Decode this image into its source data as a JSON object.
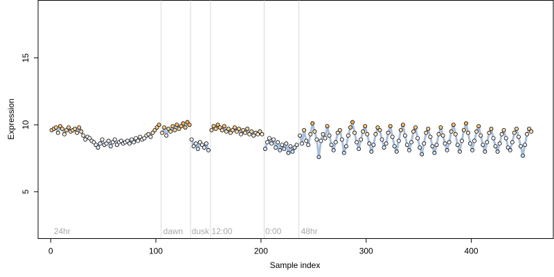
{
  "chart_data": {
    "type": "scatter",
    "title": "",
    "xlabel": "Sample index",
    "ylabel": "Expression",
    "xlim": [
      -12,
      478
    ],
    "ylim": [
      1.5,
      19.3
    ],
    "x_ticks": [
      0,
      100,
      200,
      300,
      400
    ],
    "y_ticks": [
      5,
      10,
      15
    ],
    "grid": false,
    "legend": "none",
    "colors": {
      "axis": "#000000",
      "separator": "#d9d9d9",
      "section_label": "#a8a8a8",
      "trend_line": "#a9bedb",
      "point_stroke": "#000000",
      "point_fill_low": "#c8dcf4",
      "point_fill_mid": "#ffffff",
      "point_fill_high": "#f5b04e"
    },
    "separators": [
      105,
      133,
      152,
      203,
      236
    ],
    "section_labels": [
      {
        "x": 3,
        "text": "24hr"
      },
      {
        "x": 107,
        "text": "dawn"
      },
      {
        "x": 134,
        "text": "dusk"
      },
      {
        "x": 153,
        "text": "12:00"
      },
      {
        "x": 204,
        "text": "0:00"
      },
      {
        "x": 238,
        "text": "48hr"
      }
    ],
    "segments": [
      {
        "name": "24hr",
        "points": [
          [
            1,
            9.6
          ],
          [
            3,
            9.7
          ],
          [
            5,
            9.8
          ],
          [
            7,
            9.4
          ],
          [
            9,
            9.9
          ],
          [
            11,
            9.7
          ],
          [
            13,
            9.3
          ],
          [
            15,
            9.6
          ],
          [
            17,
            9.8
          ],
          [
            19,
            9.5
          ],
          [
            21,
            9.6
          ],
          [
            23,
            9.7
          ],
          [
            25,
            9.4
          ],
          [
            27,
            9.8
          ],
          [
            29,
            9.5
          ],
          [
            31,
            9.2
          ],
          [
            33,
            8.9
          ],
          [
            35,
            9.1
          ],
          [
            37,
            9.0
          ],
          [
            39,
            8.8
          ],
          [
            41,
            8.7
          ],
          [
            43,
            8.5
          ],
          [
            45,
            8.3
          ],
          [
            47,
            8.6
          ],
          [
            49,
            8.9
          ],
          [
            51,
            8.5
          ],
          [
            53,
            8.6
          ],
          [
            55,
            8.8
          ],
          [
            57,
            8.4
          ],
          [
            59,
            8.7
          ],
          [
            61,
            8.9
          ],
          [
            63,
            8.5
          ],
          [
            65,
            8.7
          ],
          [
            67,
            8.8
          ],
          [
            69,
            8.6
          ],
          [
            71,
            8.7
          ],
          [
            73,
            8.8
          ],
          [
            75,
            8.6
          ],
          [
            77,
            8.9
          ],
          [
            79,
            8.7
          ],
          [
            81,
            9.0
          ],
          [
            83,
            8.8
          ],
          [
            85,
            9.1
          ],
          [
            87,
            8.9
          ],
          [
            89,
            9.0
          ],
          [
            91,
            9.2
          ],
          [
            93,
            9.3
          ],
          [
            95,
            9.1
          ],
          [
            97,
            9.4
          ],
          [
            99,
            9.6
          ],
          [
            101,
            9.8
          ],
          [
            103,
            10.0
          ]
        ]
      },
      {
        "name": "dawn",
        "points": [
          [
            106,
            9.4
          ],
          [
            108,
            9.8
          ],
          [
            110,
            9.2
          ],
          [
            112,
            9.7
          ],
          [
            114,
            9.5
          ],
          [
            116,
            9.9
          ],
          [
            118,
            9.6
          ],
          [
            120,
            10.0
          ],
          [
            122,
            9.7
          ],
          [
            124,
            9.9
          ],
          [
            126,
            10.1
          ],
          [
            128,
            9.8
          ],
          [
            130,
            10.2
          ],
          [
            132,
            10.0
          ]
        ]
      },
      {
        "name": "dusk",
        "points": [
          [
            134,
            8.9
          ],
          [
            136,
            8.4
          ],
          [
            138,
            8.6
          ],
          [
            140,
            8.2
          ],
          [
            142,
            8.7
          ],
          [
            144,
            8.5
          ],
          [
            146,
            8.3
          ],
          [
            148,
            8.6
          ],
          [
            150,
            8.1
          ]
        ]
      },
      {
        "name": "12:00",
        "points": [
          [
            153,
            9.6
          ],
          [
            155,
            9.9
          ],
          [
            157,
            9.7
          ],
          [
            159,
            10.0
          ],
          [
            161,
            9.8
          ],
          [
            163,
            9.6
          ],
          [
            165,
            9.9
          ],
          [
            167,
            9.5
          ],
          [
            169,
            9.7
          ],
          [
            171,
            9.4
          ],
          [
            173,
            9.6
          ],
          [
            175,
            9.8
          ],
          [
            177,
            9.5
          ],
          [
            179,
            9.7
          ],
          [
            181,
            9.3
          ],
          [
            183,
            9.6
          ],
          [
            185,
            9.4
          ],
          [
            187,
            9.7
          ],
          [
            189,
            9.3
          ],
          [
            191,
            9.5
          ],
          [
            193,
            9.2
          ],
          [
            195,
            9.4
          ],
          [
            197,
            9.3
          ],
          [
            199,
            9.5
          ],
          [
            201,
            9.3
          ]
        ]
      },
      {
        "name": "0:00",
        "points": [
          [
            204,
            8.2
          ],
          [
            206,
            8.7
          ],
          [
            208,
            9.0
          ],
          [
            210,
            8.6
          ],
          [
            212,
            8.9
          ],
          [
            214,
            8.3
          ],
          [
            216,
            8.7
          ],
          [
            218,
            8.1
          ],
          [
            220,
            8.5
          ],
          [
            222,
            8.2
          ],
          [
            224,
            8.6
          ],
          [
            226,
            7.9
          ],
          [
            228,
            8.4
          ],
          [
            230,
            8.0
          ],
          [
            232,
            8.3
          ],
          [
            234,
            8.5
          ]
        ]
      },
      {
        "name": "48hr",
        "points": [
          [
            237,
            9.2
          ],
          [
            239,
            8.6
          ],
          [
            241,
            9.6
          ],
          [
            243,
            8.8
          ],
          [
            245,
            8.5
          ],
          [
            247,
            9.3
          ],
          [
            249,
            10.1
          ],
          [
            251,
            9.5
          ],
          [
            253,
            8.9
          ],
          [
            255,
            7.6
          ],
          [
            257,
            8.8
          ],
          [
            259,
            9.3
          ],
          [
            261,
            9.0
          ],
          [
            263,
            9.9
          ],
          [
            265,
            9.2
          ],
          [
            267,
            8.5
          ],
          [
            269,
            8.1
          ],
          [
            271,
            8.7
          ],
          [
            273,
            9.4
          ],
          [
            275,
            9.6
          ],
          [
            277,
            8.9
          ],
          [
            279,
            7.9
          ],
          [
            281,
            8.4
          ],
          [
            283,
            9.2
          ],
          [
            285,
            9.8
          ],
          [
            287,
            10.2
          ],
          [
            289,
            9.4
          ],
          [
            291,
            8.7
          ],
          [
            293,
            8.2
          ],
          [
            295,
            8.9
          ],
          [
            297,
            9.5
          ],
          [
            299,
            9.9
          ],
          [
            301,
            9.3
          ],
          [
            303,
            8.6
          ],
          [
            305,
            8.0
          ],
          [
            307,
            8.5
          ],
          [
            309,
            9.3
          ],
          [
            311,
            9.8
          ],
          [
            313,
            9.6
          ],
          [
            315,
            8.9
          ],
          [
            317,
            8.3
          ],
          [
            319,
            8.6
          ],
          [
            321,
            9.4
          ],
          [
            323,
            9.9
          ],
          [
            325,
            9.1
          ],
          [
            327,
            8.4
          ],
          [
            329,
            8.0
          ],
          [
            331,
            8.8
          ],
          [
            333,
            9.6
          ],
          [
            335,
            10.0
          ],
          [
            337,
            9.2
          ],
          [
            339,
            8.5
          ],
          [
            341,
            8.1
          ],
          [
            343,
            8.7
          ],
          [
            345,
            9.5
          ],
          [
            347,
            9.8
          ],
          [
            349,
            9.0
          ],
          [
            351,
            8.3
          ],
          [
            353,
            7.8
          ],
          [
            355,
            8.6
          ],
          [
            357,
            9.4
          ],
          [
            359,
            9.7
          ],
          [
            361,
            9.1
          ],
          [
            363,
            8.4
          ],
          [
            365,
            7.9
          ],
          [
            367,
            8.5
          ],
          [
            369,
            9.3
          ],
          [
            371,
            9.8
          ],
          [
            373,
            9.2
          ],
          [
            375,
            8.6
          ],
          [
            377,
            8.1
          ],
          [
            379,
            8.7
          ],
          [
            381,
            9.5
          ],
          [
            383,
            10.0
          ],
          [
            385,
            9.3
          ],
          [
            387,
            8.5
          ],
          [
            389,
            8.0
          ],
          [
            391,
            8.8
          ],
          [
            393,
            9.6
          ],
          [
            395,
            10.1
          ],
          [
            397,
            9.4
          ],
          [
            399,
            8.6
          ],
          [
            401,
            8.1
          ],
          [
            403,
            8.8
          ],
          [
            405,
            9.5
          ],
          [
            407,
            9.9
          ],
          [
            409,
            9.2
          ],
          [
            411,
            8.5
          ],
          [
            413,
            8.0
          ],
          [
            415,
            8.7
          ],
          [
            417,
            9.4
          ],
          [
            419,
            9.7
          ],
          [
            421,
            9.0
          ],
          [
            423,
            8.4
          ],
          [
            425,
            8.0
          ],
          [
            427,
            8.6
          ],
          [
            429,
            9.3
          ],
          [
            431,
            9.6
          ],
          [
            433,
            9.0
          ],
          [
            435,
            8.3
          ],
          [
            437,
            8.1
          ],
          [
            439,
            8.7
          ],
          [
            441,
            9.4
          ],
          [
            443,
            9.7
          ],
          [
            445,
            9.1
          ],
          [
            447,
            8.4
          ],
          [
            449,
            7.7
          ],
          [
            451,
            8.5
          ],
          [
            453,
            9.3
          ],
          [
            455,
            9.7
          ],
          [
            457,
            9.5
          ]
        ]
      }
    ]
  }
}
